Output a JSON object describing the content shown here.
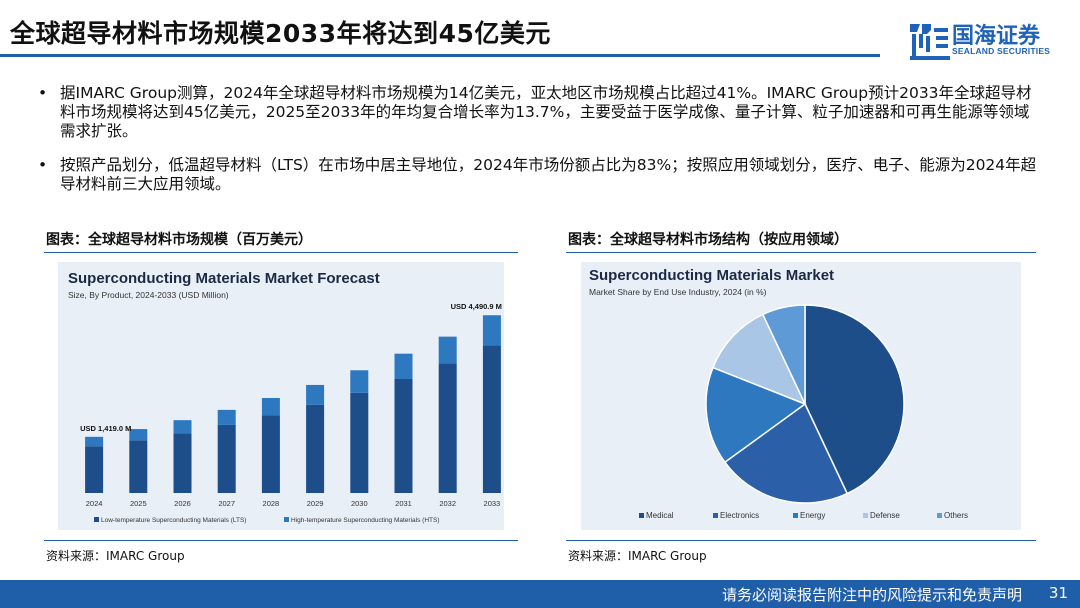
{
  "title": "全球超导材料市场规模2033年将达到45亿美元",
  "logo": {
    "cn": "国海证券",
    "en": "SEALAND SECURITIES"
  },
  "bullets": [
    "据IMARC Group测算，2024年全球超导材料市场规模为14亿美元，亚太地区市场规模占比超过41%。IMARC Group预计2033年全球超导材料市场规模将达到45亿美元，2025至2033年的年均复合增长率为13.7%，主要受益于医学成像、量子计算、粒子加速器和可再生能源等领域需求扩张。",
    "按照产品划分，低温超导材料（LTS）在市场中居主导地位，2024年市场份额占比为83%；按照应用领域划分，医疗、电子、能源为2024年超导材料前三大应用领域。"
  ],
  "bullet_symbol": "•",
  "panels": {
    "left_title": "图表：全球超导材料市场规模（百万美元）",
    "right_title": "图表：全球超导材料市场结构（按应用领域）",
    "left_source": "资料来源：IMARC Group",
    "right_source": "资料来源：IMARC Group"
  },
  "footer": {
    "text": "请务必阅读报告附注中的风险提示和免责声明",
    "page": "31"
  },
  "colors": {
    "brand_blue": "#1f5ea8",
    "lts": "#1d4e89",
    "hts": "#2e78c0",
    "chart_bg": "#e9eff7"
  },
  "chart_data": [
    {
      "type": "bar",
      "stacked": true,
      "title": "Superconducting Materials Market Forecast",
      "subtitle": "Size, By Product, 2024-2033 (USD Million)",
      "categories": [
        "2024",
        "2025",
        "2026",
        "2027",
        "2028",
        "2029",
        "2030",
        "2031",
        "2032",
        "2033"
      ],
      "series": [
        {
          "name": "Low-temperature Superconducting Materials (LTS)",
          "values": [
            1178,
            1330,
            1510,
            1720,
            1960,
            2230,
            2530,
            2880,
            3270,
            3730
          ]
        },
        {
          "name": "High-temperature Superconducting Materials (HTS)",
          "values": [
            241,
            285,
            330,
            380,
            440,
            500,
            570,
            640,
            680,
            761
          ]
        }
      ],
      "data_labels": [
        {
          "category": "2024",
          "text": "USD 1,419.0 M"
        },
        {
          "category": "2033",
          "text": "USD 4,490.9 M"
        }
      ],
      "ylim": [
        0,
        4800
      ],
      "legend": "bottom",
      "grid": false
    },
    {
      "type": "pie",
      "title": "Superconducting Materials Market",
      "subtitle": "Market Share by End Use Industry, 2024 (in %)",
      "labels": [
        "Medical",
        "Electronics",
        "Energy",
        "Defense",
        "Others"
      ],
      "values": [
        43,
        22,
        16,
        12,
        7
      ],
      "colors": [
        "#1d4e89",
        "#2b5fa8",
        "#2e78c0",
        "#a9c6e6",
        "#5d9ad6"
      ],
      "legend": "bottom"
    }
  ]
}
